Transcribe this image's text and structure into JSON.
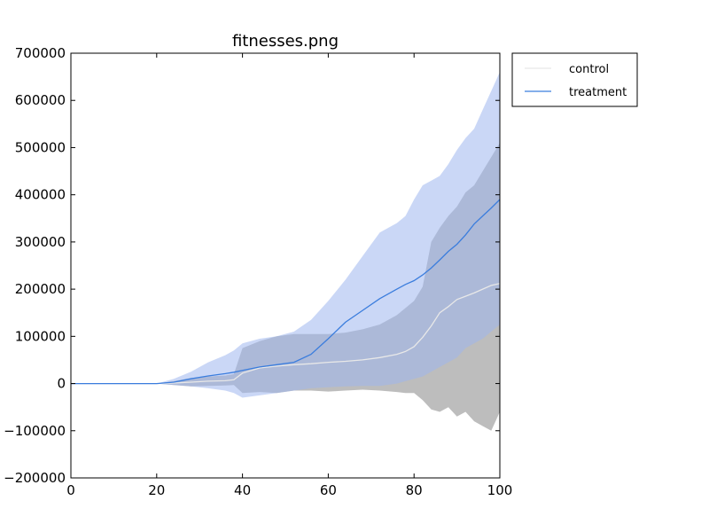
{
  "chart_data": {
    "type": "area",
    "title": "fitnesses.png",
    "xlabel": "",
    "ylabel": "",
    "xlim": [
      0,
      100
    ],
    "ylim": [
      -200000,
      700000
    ],
    "xticks": [
      0,
      20,
      40,
      60,
      80,
      100
    ],
    "yticks": [
      -200000,
      -100000,
      0,
      100000,
      200000,
      300000,
      400000,
      500000,
      600000,
      700000
    ],
    "grid": false,
    "legend_position": "outside-top-right",
    "series": [
      {
        "name": "control",
        "color": "#e8e8e8",
        "band_color": "#bdbdbd",
        "x": [
          0,
          10,
          20,
          24,
          28,
          32,
          36,
          38,
          40,
          44,
          48,
          52,
          56,
          60,
          64,
          68,
          72,
          76,
          78,
          80,
          82,
          84,
          86,
          88,
          90,
          92,
          94,
          96,
          98,
          100
        ],
        "mean": [
          0,
          0,
          0,
          1000,
          3000,
          5000,
          6000,
          8000,
          22000,
          33000,
          37000,
          40000,
          42000,
          45000,
          47000,
          50000,
          55000,
          62000,
          68000,
          78000,
          98000,
          122000,
          150000,
          163000,
          178000,
          185000,
          192000,
          200000,
          208000,
          212000
        ],
        "upper": [
          0,
          0,
          0,
          5000,
          12000,
          15000,
          17000,
          20000,
          75000,
          90000,
          100000,
          105000,
          105000,
          105000,
          108000,
          115000,
          125000,
          145000,
          160000,
          175000,
          205000,
          300000,
          330000,
          355000,
          375000,
          405000,
          420000,
          450000,
          480000,
          510000
        ],
        "lower": [
          0,
          0,
          0,
          -3000,
          -6000,
          -5000,
          -4000,
          -3000,
          -20000,
          -18000,
          -20000,
          -15000,
          -15000,
          -17000,
          -15000,
          -13000,
          -15000,
          -18000,
          -20000,
          -20000,
          -35000,
          -55000,
          -60000,
          -50000,
          -70000,
          -60000,
          -80000,
          -90000,
          -100000,
          -60000
        ]
      },
      {
        "name": "treatment",
        "color": "#3b7ddd",
        "band_color": "#9fb6ef",
        "x": [
          0,
          10,
          20,
          24,
          28,
          32,
          36,
          38,
          40,
          44,
          48,
          52,
          56,
          60,
          64,
          68,
          72,
          76,
          78,
          80,
          82,
          84,
          86,
          88,
          90,
          92,
          94,
          96,
          98,
          100
        ],
        "mean": [
          0,
          0,
          0,
          3000,
          10000,
          16000,
          21000,
          24000,
          28000,
          35000,
          40000,
          45000,
          62000,
          95000,
          130000,
          155000,
          180000,
          200000,
          210000,
          218000,
          230000,
          245000,
          262000,
          280000,
          295000,
          315000,
          338000,
          355000,
          372000,
          390000
        ],
        "upper": [
          0,
          0,
          0,
          10000,
          25000,
          45000,
          60000,
          70000,
          85000,
          95000,
          100000,
          110000,
          135000,
          175000,
          220000,
          270000,
          320000,
          340000,
          355000,
          390000,
          420000,
          430000,
          440000,
          465000,
          495000,
          520000,
          540000,
          580000,
          620000,
          660000
        ],
        "lower": [
          0,
          0,
          0,
          -3000,
          -6000,
          -10000,
          -15000,
          -20000,
          -30000,
          -25000,
          -20000,
          -15000,
          -10000,
          -8000,
          -6000,
          -5000,
          -5000,
          0,
          5000,
          10000,
          15000,
          25000,
          35000,
          45000,
          55000,
          75000,
          85000,
          95000,
          110000,
          125000
        ]
      }
    ]
  }
}
